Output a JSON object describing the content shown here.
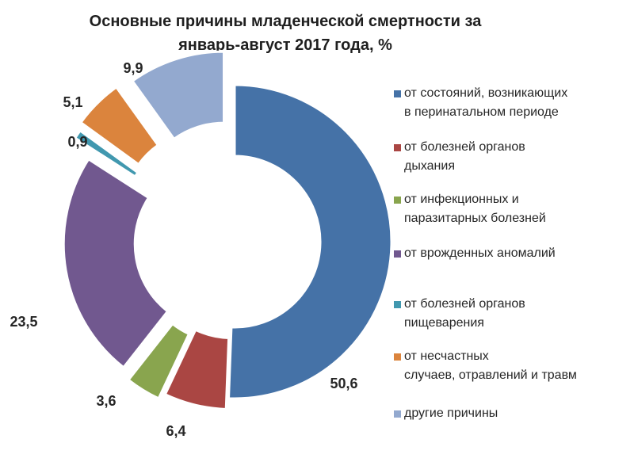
{
  "title": {
    "line1": "Основные причины младенческой смертности за",
    "line2": "январь-август 2017 года, %"
  },
  "chart_data": {
    "type": "donut",
    "title": "Основные причины младенческой смертности за январь-август 2017 года, %",
    "unit": "%",
    "categories": [
      "от состояний, возникающих в перинатальном периоде",
      "от болезней органов дыхания",
      "от инфекционных и паразитарных болезней",
      "от врожденных аномалий",
      "от болезней органов пищеварения",
      "от несчастных случаев, отравлений и травм",
      "другие причины"
    ],
    "values": [
      50.6,
      6.4,
      3.6,
      23.5,
      0.9,
      5.1,
      9.9
    ],
    "value_labels": [
      "50,6",
      "6,4",
      "3,6",
      "23,5",
      "0,9",
      "5,1",
      "9,9"
    ],
    "colors": [
      "#4572a7",
      "#aa4643",
      "#89a54e",
      "#71588f",
      "#4198af",
      "#db843d",
      "#93a9cf"
    ],
    "legend_labels": [
      "от состояний, возникающих\nв перинатальном периоде",
      "от болезней органов\nдыхания",
      "от инфекционных и\nпаразитарных болезней",
      "от врожденных аномалий",
      "от болезней органов\nпищеварения",
      "от несчастных\nслучаев, отравлений и травм",
      "другие причины"
    ],
    "legend_position": "right"
  }
}
